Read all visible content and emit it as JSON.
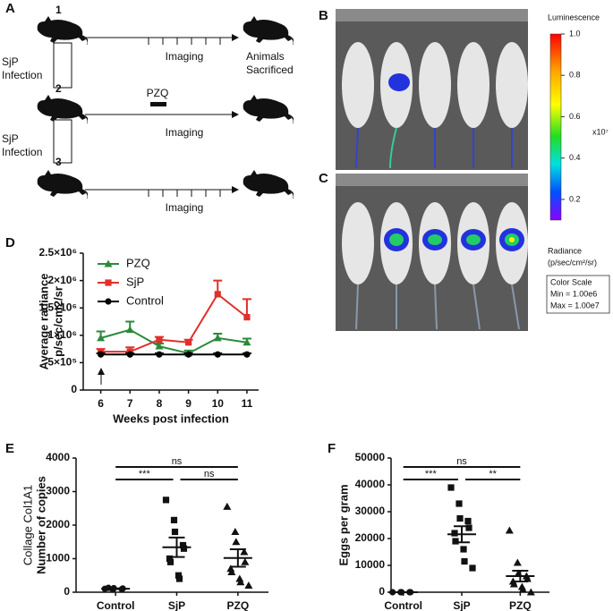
{
  "panel_a": {
    "label": "A",
    "rows": [
      {
        "step": "1",
        "infection": [
          "SjP",
          "Infection"
        ],
        "imaging": "Imaging",
        "end": [
          "Animals",
          "Sacrificed"
        ]
      },
      {
        "step": "2",
        "infection": [
          "SjP",
          "Infection"
        ],
        "drug": "PZQ",
        "imaging": "Imaging"
      },
      {
        "step": "3",
        "imaging": "Imaging"
      }
    ]
  },
  "panel_b": {
    "label": "B"
  },
  "panel_c": {
    "label": "C"
  },
  "colorbar": {
    "title": "Luminescence",
    "lim": [
      0.1,
      1.0
    ],
    "ticks": [
      {
        "value": 1.0,
        "label": "1.0"
      },
      0.8,
      0.6,
      0.4,
      0.2
    ],
    "multiplier": "x10⁷",
    "unit": [
      "Radiance",
      "(p/sec/cm²/sr)"
    ],
    "scale_box": [
      "Color Scale",
      "Min = 1.00e6",
      "Max = 1.00e7"
    ]
  },
  "chart_data": [
    {
      "type": "line",
      "panel_label": "D",
      "xlabel": "Weeks post infection",
      "ylabel": [
        "Average radiance",
        "p/sec/cm2/sr"
      ],
      "x": [
        6,
        7,
        8,
        9,
        10,
        11
      ],
      "xlim": [
        5.4,
        11.4
      ],
      "xticks": [
        6,
        7,
        8,
        9,
        10,
        11
      ],
      "ylim": [
        0,
        2500000
      ],
      "yticks": [
        0,
        {
          "value": 500000,
          "label": "5×10⁵"
        },
        {
          "value": 1000000,
          "label": "1×10⁶"
        },
        {
          "value": 1500000,
          "label": "1.5×10⁶"
        },
        {
          "value": 2000000,
          "label": "2×10⁶"
        },
        {
          "value": 2500000,
          "label": "2.5×10⁶"
        }
      ],
      "series": [
        {
          "name": "PZQ",
          "color": "#2a8a3a",
          "marker": "triangle",
          "values": [
            950000,
            1100000,
            800000,
            670000,
            950000,
            870000
          ],
          "errors": [
            120000,
            150000,
            50000,
            50000,
            80000,
            70000
          ]
        },
        {
          "name": "SjP",
          "color": "#e0302a",
          "marker": "square",
          "values": [
            700000,
            700000,
            920000,
            870000,
            1750000,
            1330000
          ],
          "errors": [
            50000,
            80000,
            50000,
            50000,
            250000,
            330000
          ]
        },
        {
          "name": "Control",
          "color": "#000000",
          "marker": "circle",
          "values": [
            650000,
            650000,
            650000,
            650000,
            650000,
            650000
          ],
          "errors": [
            20000,
            20000,
            20000,
            20000,
            20000,
            20000
          ]
        }
      ]
    },
    {
      "type": "dot",
      "panel_label": "E",
      "ylabel": [
        "Collage Col1A1",
        "Number of copies"
      ],
      "categories": [
        "Control",
        "SjP",
        "PZQ"
      ],
      "markers": [
        "circle",
        "square",
        "triangle"
      ],
      "ylim": [
        0,
        4000
      ],
      "yticks": [
        0,
        1000,
        2000,
        3000,
        4000
      ],
      "points": [
        [
          100,
          80,
          120,
          90,
          110,
          130
        ],
        [
          2750,
          2150,
          1800,
          1400,
          1300,
          1000,
          900,
          500,
          400
        ],
        [
          2550,
          1800,
          1500,
          1200,
          900,
          700,
          600,
          400,
          300,
          200
        ]
      ],
      "means": [
        105,
        1340,
        1020
      ],
      "sems": [
        10,
        290,
        260
      ],
      "significance": [
        "***",
        "ns",
        "ns"
      ]
    },
    {
      "type": "dot",
      "panel_label": "F",
      "ylabel": [
        "Eggs per gram"
      ],
      "categories": [
        "Control",
        "SjP",
        "PZQ"
      ],
      "markers": [
        "circle",
        "square",
        "triangle"
      ],
      "ylim": [
        0,
        50000
      ],
      "yticks": [
        0,
        10000,
        20000,
        30000,
        40000,
        50000
      ],
      "points": [
        [
          0,
          0,
          0,
          0,
          0
        ],
        [
          39000,
          33000,
          27500,
          26500,
          24000,
          22000,
          19000,
          16000,
          11500,
          9000
        ],
        [
          23000,
          11000,
          7000,
          6000,
          5000,
          4000,
          3000,
          2000,
          1000,
          0
        ]
      ],
      "means": [
        0,
        21600,
        6000
      ],
      "sems": [
        0,
        3000,
        2000
      ],
      "significance": [
        "***",
        "**",
        "ns"
      ]
    }
  ]
}
